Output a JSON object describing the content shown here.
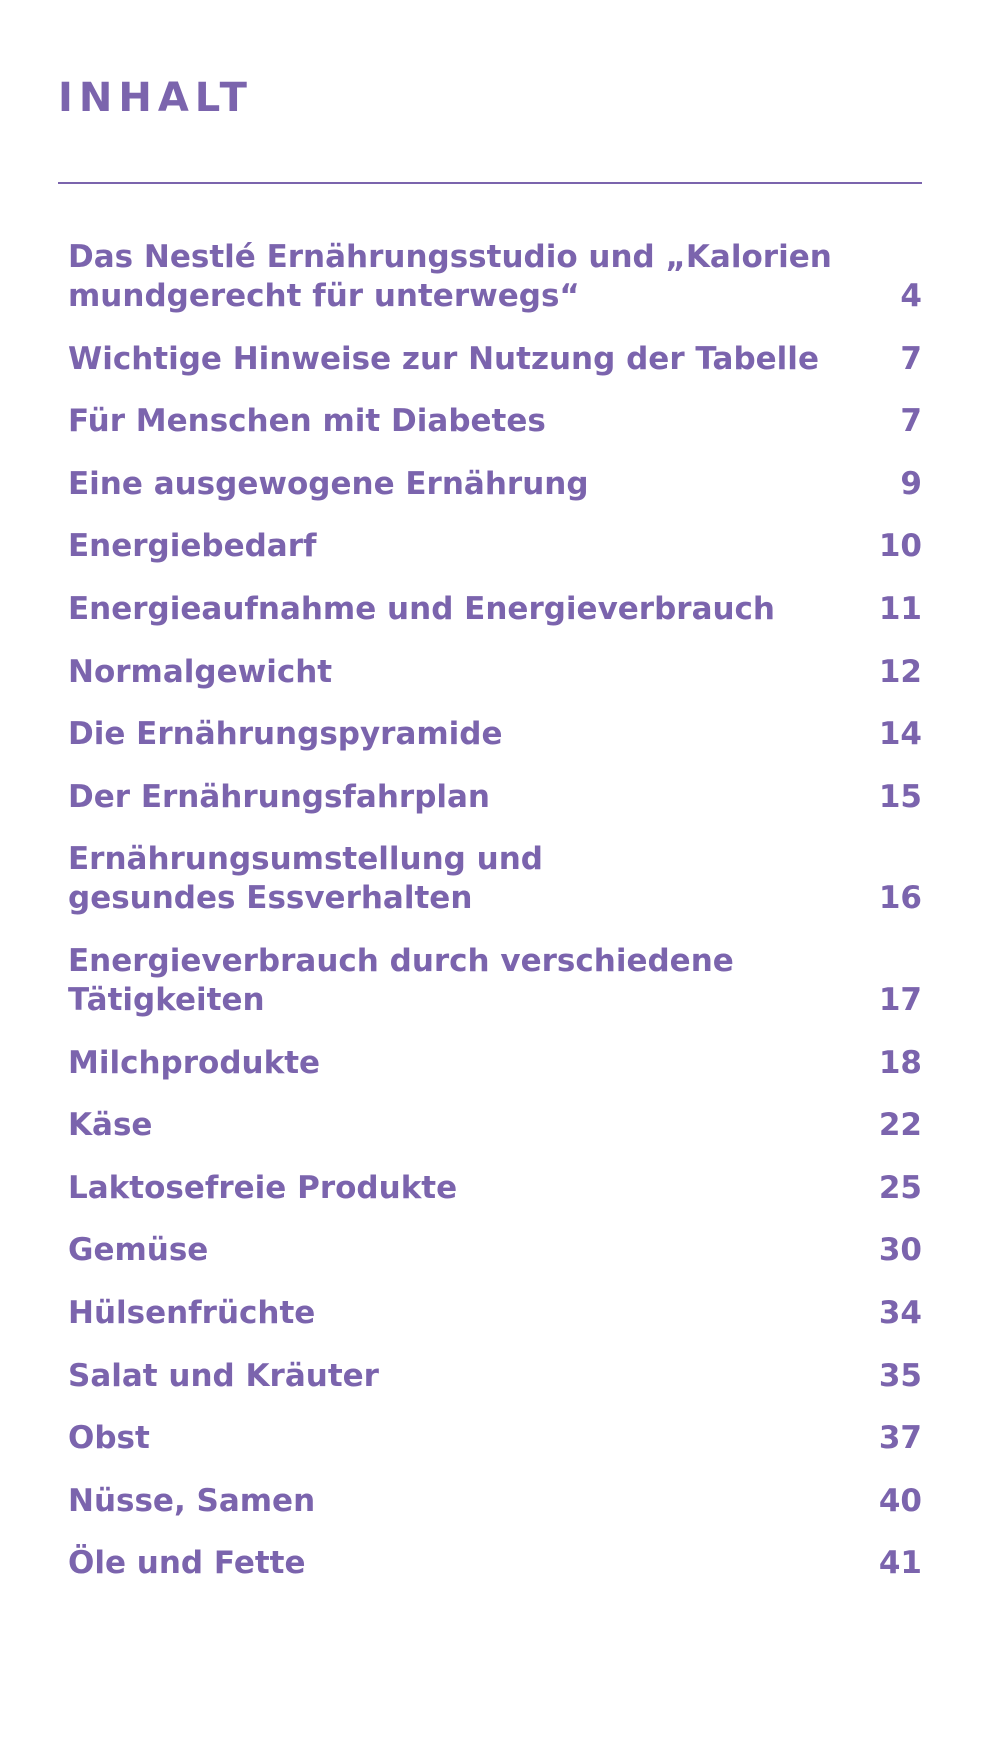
{
  "heading": "INHALT",
  "toc": [
    {
      "line1": "Das Nestlé Ernährungsstudio und „Kalorien",
      "line2": "mundgerecht für unterwegs“",
      "page": "4"
    },
    {
      "line1": "Wichtige Hinweise zur Nutzung der Tabelle",
      "line2": "",
      "page": "7"
    },
    {
      "line1": "Für Menschen mit Diabetes",
      "line2": "",
      "page": "7"
    },
    {
      "line1": "Eine ausgewogene Ernährung",
      "line2": "",
      "page": "9"
    },
    {
      "line1": "Energiebedarf",
      "line2": "",
      "page": "10"
    },
    {
      "line1": "Energieaufnahme und Energieverbrauch",
      "line2": "",
      "page": "11"
    },
    {
      "line1": "Normalgewicht",
      "line2": "",
      "page": "12"
    },
    {
      "line1": "Die Ernährungspyramide",
      "line2": "",
      "page": "14"
    },
    {
      "line1": "Der Ernährungsfahrplan",
      "line2": "",
      "page": "15"
    },
    {
      "line1": "Ernährungsumstellung und",
      "line2": "gesundes Essverhalten",
      "page": "16"
    },
    {
      "line1": "Energieverbrauch durch verschiedene",
      "line2": "Tätigkeiten",
      "page": "17"
    },
    {
      "line1": "Milchprodukte",
      "line2": "",
      "page": "18"
    },
    {
      "line1": "Käse",
      "line2": "",
      "page": "22"
    },
    {
      "line1": "Laktosefreie Produkte",
      "line2": "",
      "page": "25"
    },
    {
      "line1": "Gemüse",
      "line2": "",
      "page": "30"
    },
    {
      "line1": "Hülsenfrüchte",
      "line2": "",
      "page": "34"
    },
    {
      "line1": "Salat und Kräuter",
      "line2": "",
      "page": "35"
    },
    {
      "line1": "Obst",
      "line2": "",
      "page": "37"
    },
    {
      "line1": "Nüsse, Samen",
      "line2": "",
      "page": "40"
    },
    {
      "line1": "Öle und Fette",
      "line2": "",
      "page": "41"
    }
  ],
  "colors": {
    "accent": "#7b64ad"
  }
}
